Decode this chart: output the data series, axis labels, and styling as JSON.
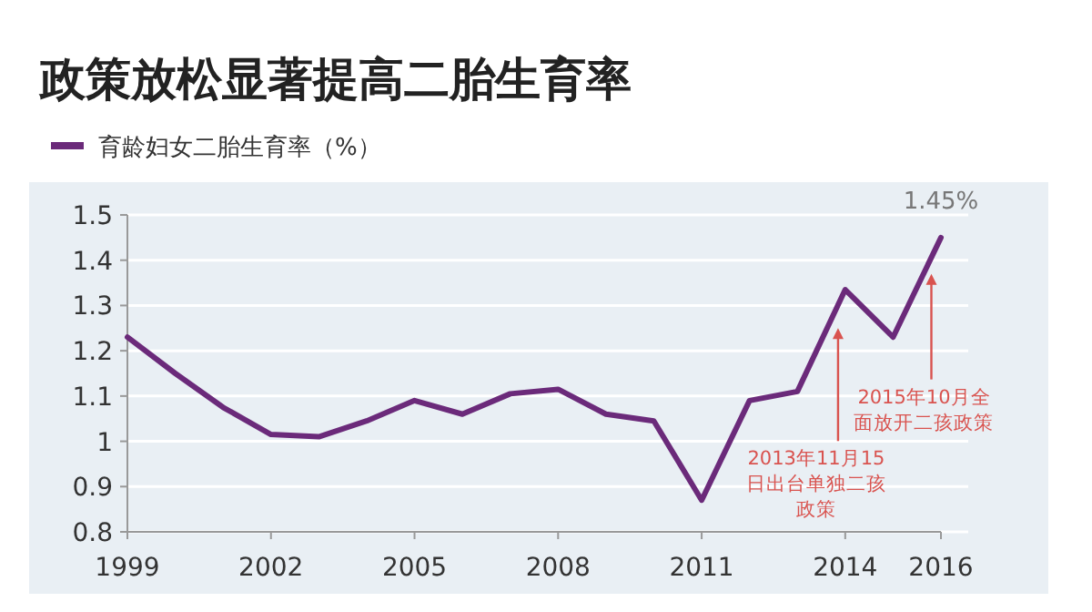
{
  "chart_data": {
    "type": "line",
    "title": "政策放松显著提高二胎生育率",
    "x": [
      1999,
      2000,
      2001,
      2002,
      2003,
      2004,
      2005,
      2006,
      2007,
      2008,
      2009,
      2010,
      2011,
      2012,
      2013,
      2014,
      2015,
      2016
    ],
    "series": [
      {
        "name": "育龄妇女二胎生育率（%）",
        "color": "#6b2a7a",
        "values": [
          1.23,
          1.15,
          1.075,
          1.015,
          1.01,
          1.045,
          1.09,
          1.06,
          1.105,
          1.115,
          1.06,
          1.045,
          0.87,
          1.09,
          1.11,
          1.335,
          1.23,
          1.45
        ],
        "value_labels": [
          null,
          null,
          null,
          null,
          null,
          null,
          null,
          null,
          null,
          null,
          null,
          null,
          null,
          null,
          null,
          null,
          null,
          "1.45%"
        ]
      }
    ],
    "xlim": [
      1999,
      2016
    ],
    "xticks": [
      1999,
      2002,
      2005,
      2008,
      2011,
      2014,
      2016
    ],
    "ylim": [
      0.8,
      1.5
    ],
    "yticks": [
      0.8,
      0.9,
      {
        "value": 1,
        "label": "1"
      },
      1.1,
      1.2,
      1.3,
      1.4,
      1.5
    ],
    "grid": "y",
    "legend": "top left",
    "marker": "none",
    "line_style": "solid",
    "annotations": [
      {
        "text": "2013年11月15日出台单独二孩政策",
        "x": 2013.85,
        "y": 1.25
      },
      {
        "text": "2015年10月全面放开二孩政策",
        "x": 2015.8,
        "y": 1.37
      }
    ]
  }
}
